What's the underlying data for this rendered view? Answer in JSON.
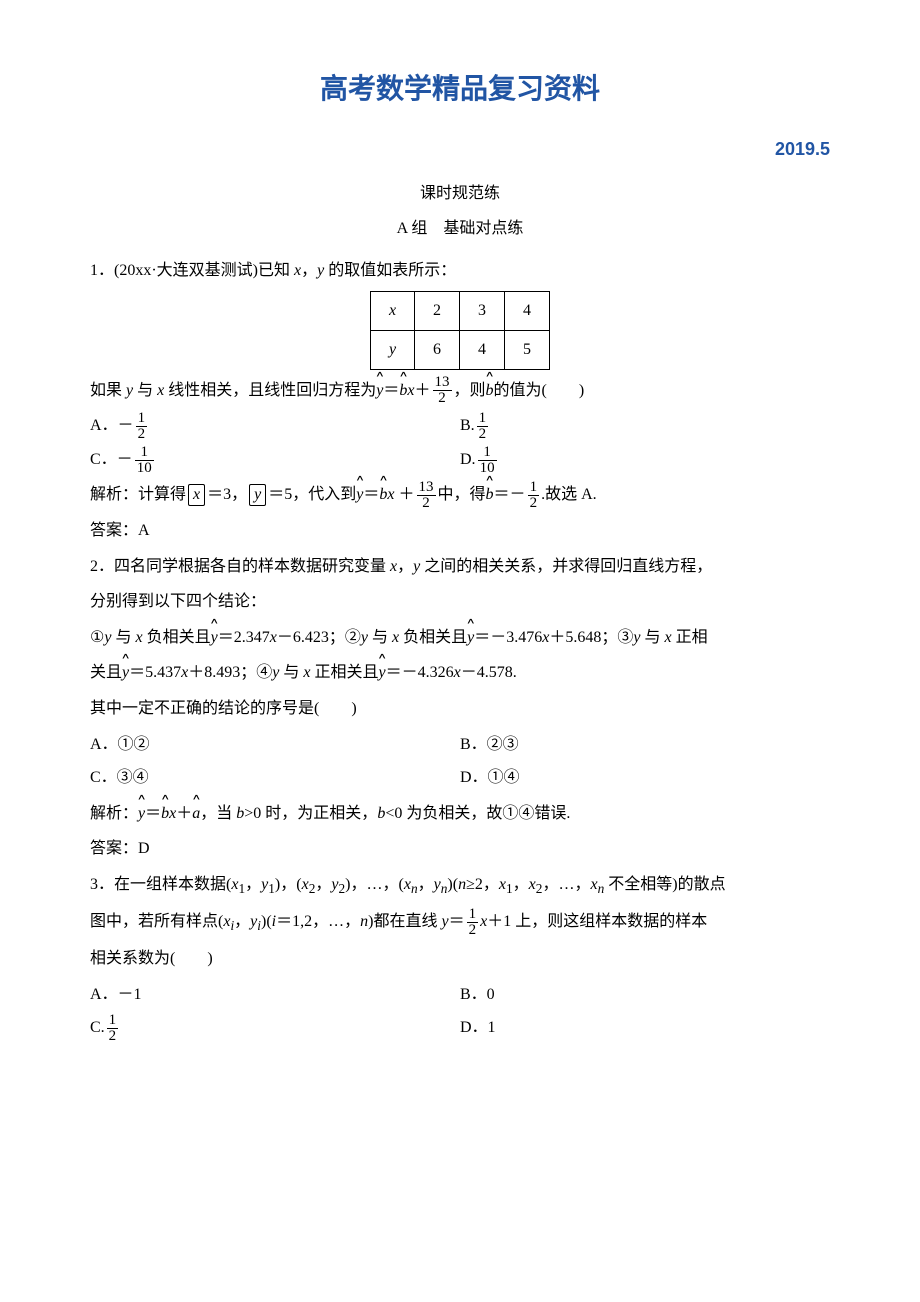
{
  "header": {
    "title": "高考数学精品复习资料",
    "date": "2019.5",
    "sub1": "课时规范练",
    "sub2": "A 组　基础对点练"
  },
  "q1": {
    "stem_prefix": "1．(20xx·大连双基测试)已知 ",
    "stem_mid": "，",
    "stem_suffix": " 的取值如表所示：",
    "table": {
      "r1": [
        "x",
        "2",
        "3",
        "4"
      ],
      "r2": [
        "y",
        "6",
        "4",
        "5"
      ]
    },
    "line2a": "如果 ",
    "line2b": " 与 ",
    "line2c": " 线性相关，且线性回归方程为",
    "line2d": "＝",
    "line2e": "＋",
    "line2f": "，则",
    "line2g": "的值为(　　)",
    "optA_label": "A．－",
    "optB_label": "B.",
    "optC_label": "C．－",
    "optD_label": "D.",
    "frac_1_2_num": "1",
    "frac_1_2_den": "2",
    "frac_1_10_num": "1",
    "frac_1_10_den": "10",
    "frac_13_2_num": "13",
    "frac_13_2_den": "2",
    "jiexi_label": "解析：",
    "jiexi_a": "计算得",
    "jiexi_b": "＝3，",
    "jiexi_c": "＝5，代入到",
    "jiexi_d": "＝",
    "jiexi_e": " ＋",
    "jiexi_f": "中，得",
    "jiexi_g": "＝－",
    "jiexi_h": ".故选 A.",
    "answer_label": "答案：",
    "answer": "A"
  },
  "q2": {
    "stem1": "2．四名同学根据各自的样本数据研究变量 ",
    "stem2": "，",
    "stem3": " 之间的相关关系，并求得回归直线方程，",
    "stem4": "分别得到以下四个结论：",
    "c1a": "①",
    "c1b": " 与 ",
    "c1c": " 负相关且",
    "c1d": "＝2.347",
    "c1e": "－6.423；②",
    "c1f": " 与 ",
    "c1g": " 负相关且",
    "c1h": "＝－3.476",
    "c1i": "＋5.648；③",
    "c1j": " 与 ",
    "c1k": " 正相",
    "c2a": "关且",
    "c2b": "＝5.437",
    "c2c": "＋8.493；④",
    "c2d": " 与 ",
    "c2e": " 正相关且",
    "c2f": "＝－4.326",
    "c2g": "－4.578.",
    "line_wrong": "其中一定不正确的结论的序号是(　　)",
    "optA": "A．①②",
    "optB": "B．②③",
    "optC": "C．③④",
    "optD": "D．①④",
    "jiexi_label": "解析：",
    "jiexi_a": "＝",
    "jiexi_b": "＋",
    "jiexi_c": "，当 ",
    "jiexi_d": ">0 时，为正相关，",
    "jiexi_e": "<0 为负相关，故①④错误.",
    "answer_label": "答案：",
    "answer": "D"
  },
  "q3": {
    "s1": "3．在一组样本数据(",
    "s2": "，",
    "s3": ")，(",
    "s4": "，",
    "s5": ")，…，(",
    "s6": "，",
    "s7": ")(",
    "s8": "≥2，",
    "s9": "，",
    "s10": "，…，",
    "s11": " 不全相等)的散点",
    "l2a": "图中，若所有样点(",
    "l2b": "，",
    "l2c": ")(",
    "l2d": "＝1,2，…，",
    "l2e": ")都在直线 ",
    "l2f": "＝",
    "l2g": "＋1 上，则这组样本数据的样本",
    "l3": "相关系数为(　　)",
    "frac_num": "1",
    "frac_den": "2",
    "optA": "A．－1",
    "optB": "B．0",
    "optC_label": "C.",
    "optD": "D．1"
  }
}
